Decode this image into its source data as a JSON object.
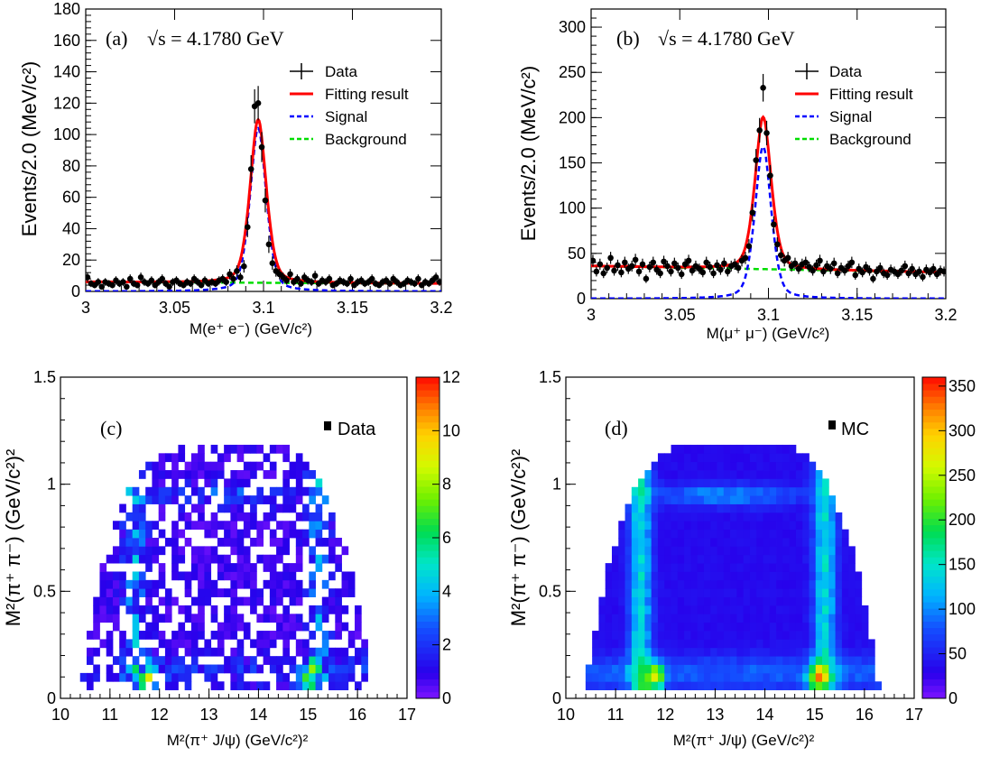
{
  "chart_data": [
    {
      "panel": "(a)",
      "type": "scatter",
      "energy_label": "√s = 4.1780 GeV",
      "xlabel": "M(e⁺ e⁻) (GeV/c²)",
      "ylabel": "Events/2.0 (MeV/c²)",
      "xlim": [
        3.0,
        3.2
      ],
      "ylim": [
        0,
        180
      ],
      "xticks": [
        "3",
        "3.05",
        "3.1",
        "3.15",
        "3.2"
      ],
      "yticks": [
        "0",
        "20",
        "40",
        "60",
        "80",
        "100",
        "120",
        "140",
        "160",
        "180"
      ],
      "legend_position": "top-right",
      "legend": [
        "Data",
        "Fitting result",
        "Signal",
        "Background"
      ],
      "peak": {
        "mean": 3.097,
        "sigma": 0.0048,
        "signal_height": 104
      },
      "background_level": [
        6,
        5
      ],
      "data_x": [
        3.001,
        3.003,
        3.005,
        3.007,
        3.009,
        3.011,
        3.013,
        3.015,
        3.017,
        3.019,
        3.021,
        3.023,
        3.025,
        3.027,
        3.029,
        3.031,
        3.033,
        3.035,
        3.037,
        3.039,
        3.041,
        3.043,
        3.045,
        3.047,
        3.049,
        3.051,
        3.053,
        3.055,
        3.057,
        3.059,
        3.061,
        3.063,
        3.065,
        3.067,
        3.069,
        3.071,
        3.073,
        3.075,
        3.077,
        3.079,
        3.081,
        3.083,
        3.085,
        3.087,
        3.089,
        3.091,
        3.093,
        3.095,
        3.097,
        3.099,
        3.101,
        3.103,
        3.105,
        3.107,
        3.109,
        3.111,
        3.113,
        3.115,
        3.117,
        3.119,
        3.121,
        3.123,
        3.125,
        3.127,
        3.129,
        3.131,
        3.133,
        3.135,
        3.137,
        3.139,
        3.141,
        3.143,
        3.145,
        3.147,
        3.149,
        3.151,
        3.153,
        3.155,
        3.157,
        3.159,
        3.161,
        3.163,
        3.165,
        3.167,
        3.169,
        3.171,
        3.173,
        3.175,
        3.177,
        3.179,
        3.181,
        3.183,
        3.185,
        3.187,
        3.189,
        3.191,
        3.193,
        3.195,
        3.197,
        3.199
      ],
      "data_y": [
        9,
        5,
        4,
        6,
        3,
        6,
        5,
        4,
        7,
        5,
        6,
        3,
        8,
        5,
        4,
        9,
        6,
        5,
        7,
        4,
        6,
        8,
        5,
        3,
        6,
        7,
        5,
        4,
        6,
        5,
        8,
        6,
        4,
        7,
        5,
        6,
        5,
        7,
        8,
        6,
        11,
        8,
        13,
        9,
        16,
        41,
        78,
        118,
        120,
        92,
        58,
        30,
        18,
        13,
        11,
        9,
        7,
        11,
        6,
        8,
        5,
        9,
        7,
        6,
        10,
        5,
        7,
        6,
        8,
        4,
        5,
        7,
        6,
        5,
        8,
        4,
        6,
        7,
        5,
        6,
        8,
        5,
        4,
        6,
        7,
        5,
        8,
        6,
        4,
        5,
        7,
        6,
        5,
        8,
        4,
        6,
        5,
        7,
        9,
        6
      ]
    },
    {
      "panel": "(b)",
      "type": "scatter",
      "energy_label": "√s = 4.1780 GeV",
      "xlabel": "M(μ⁺ μ⁻) (GeV/c²)",
      "ylabel": "Events/2.0 (MeV/c²)",
      "xlim": [
        3.0,
        3.2
      ],
      "ylim": [
        0,
        320
      ],
      "xticks": [
        "3",
        "3.05",
        "3.1",
        "3.15",
        "3.2"
      ],
      "yticks": [
        "0",
        "50",
        "100",
        "150",
        "200",
        "250",
        "300"
      ],
      "legend_position": "top-right",
      "legend": [
        "Data",
        "Fitting result",
        "Signal",
        "Background"
      ],
      "peak": {
        "mean": 3.097,
        "sigma": 0.0048,
        "signal_height": 168
      },
      "background_level": [
        36,
        29
      ],
      "data_x": [
        3.001,
        3.003,
        3.005,
        3.007,
        3.009,
        3.011,
        3.013,
        3.015,
        3.017,
        3.019,
        3.021,
        3.023,
        3.025,
        3.027,
        3.029,
        3.031,
        3.033,
        3.035,
        3.037,
        3.039,
        3.041,
        3.043,
        3.045,
        3.047,
        3.049,
        3.051,
        3.053,
        3.055,
        3.057,
        3.059,
        3.061,
        3.063,
        3.065,
        3.067,
        3.069,
        3.071,
        3.073,
        3.075,
        3.077,
        3.079,
        3.081,
        3.083,
        3.085,
        3.087,
        3.089,
        3.091,
        3.093,
        3.095,
        3.097,
        3.099,
        3.101,
        3.103,
        3.105,
        3.107,
        3.109,
        3.111,
        3.113,
        3.115,
        3.117,
        3.119,
        3.121,
        3.123,
        3.125,
        3.127,
        3.129,
        3.131,
        3.133,
        3.135,
        3.137,
        3.139,
        3.141,
        3.143,
        3.145,
        3.147,
        3.149,
        3.151,
        3.153,
        3.155,
        3.157,
        3.159,
        3.161,
        3.163,
        3.165,
        3.167,
        3.169,
        3.171,
        3.173,
        3.175,
        3.177,
        3.179,
        3.181,
        3.183,
        3.185,
        3.187,
        3.189,
        3.191,
        3.193,
        3.195,
        3.197,
        3.199
      ],
      "data_y": [
        42,
        30,
        38,
        28,
        34,
        45,
        31,
        37,
        29,
        40,
        33,
        36,
        43,
        30,
        38,
        22,
        35,
        40,
        32,
        28,
        41,
        36,
        30,
        39,
        34,
        27,
        38,
        42,
        31,
        36,
        33,
        29,
        40,
        35,
        28,
        37,
        32,
        39,
        30,
        36,
        38,
        34,
        42,
        45,
        58,
        95,
        153,
        186,
        233,
        183,
        136,
        82,
        60,
        48,
        42,
        45,
        36,
        39,
        33,
        38,
        40,
        35,
        31,
        37,
        42,
        30,
        36,
        33,
        39,
        28,
        34,
        31,
        36,
        40,
        26,
        33,
        29,
        35,
        31,
        22,
        30,
        34,
        28,
        26,
        32,
        30,
        27,
        31,
        36,
        28,
        33,
        27,
        30,
        24,
        32,
        29,
        33,
        27,
        31,
        30
      ]
    },
    {
      "panel": "(c)",
      "type": "heatmap",
      "legend_label": "Data",
      "xlabel": "M²(π⁺ J/ψ) (GeV/c²)²",
      "ylabel": "M²(π⁺ π⁻) (GeV/c²)²",
      "xlim": [
        10,
        17
      ],
      "ylim": [
        0,
        1.5
      ],
      "xticks": [
        "10",
        "11",
        "12",
        "13",
        "14",
        "15",
        "16",
        "17"
      ],
      "yticks": [
        "0",
        "0.5",
        "1",
        "1.5"
      ],
      "zlim": [
        0,
        12
      ],
      "colorbar_ticks": [
        "0",
        "2",
        "4",
        "6",
        "8",
        "10",
        "12"
      ],
      "bins": {
        "nx": 53,
        "ny": 38
      },
      "distribution": "sparse Dalitz plot; enhanced bands near M²(π⁺J/ψ) ≈ 11.8 and 15.1 at low M²(π⁺π⁻), max ~12 events per bin"
    },
    {
      "panel": "(d)",
      "type": "heatmap",
      "legend_label": "MC",
      "xlabel": "M²(π⁺ J/ψ) (GeV/c²)²",
      "ylabel": "M²(π⁺ π⁻) (GeV/c²)²",
      "xlim": [
        10,
        17
      ],
      "ylim": [
        0,
        1.5
      ],
      "xticks": [
        "10",
        "11",
        "12",
        "13",
        "14",
        "15",
        "16",
        "17"
      ],
      "yticks": [
        "0",
        "0.5",
        "1",
        "1.5"
      ],
      "zlim": [
        0,
        360
      ],
      "colorbar_ticks": [
        "0",
        "50",
        "100",
        "150",
        "200",
        "250",
        "300",
        "350"
      ],
      "bins": {
        "nx": 53,
        "ny": 38
      },
      "distribution": "dense Dalitz plot; vertical bands at M²(π⁺J/ψ) ≈ 11.4 and 15.3, horizontal band near M²(π⁺π⁻) ≈ 0.97, hot spots ~350 near (11.8, 0.08) and (15.0, 0.08)"
    }
  ],
  "colors": {
    "data": "#000000",
    "fit": "#ff0000",
    "signal": "#0000ff",
    "background": "#00dd00"
  }
}
